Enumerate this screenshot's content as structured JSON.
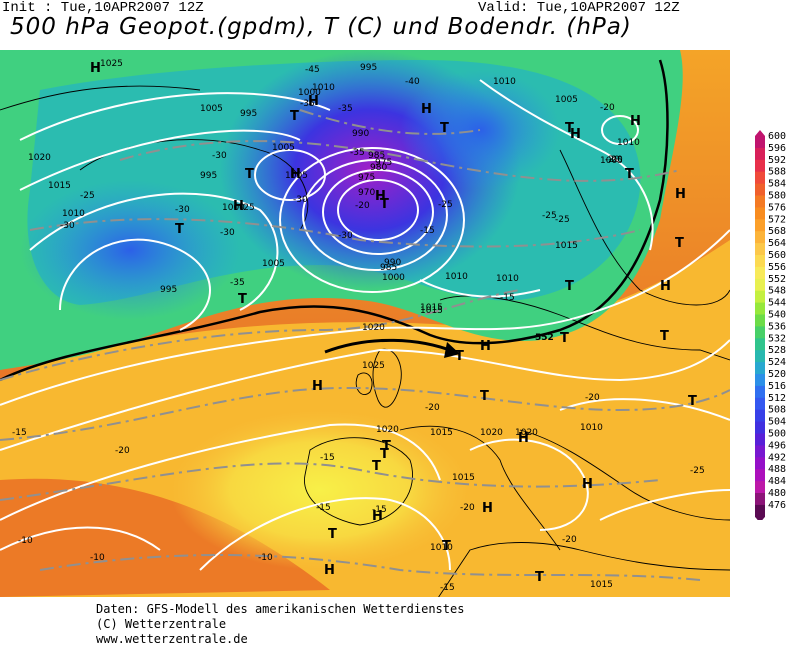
{
  "header": {
    "init": "Init : Tue,10APR2007 12Z",
    "valid": "Valid: Tue,10APR2007 12Z",
    "title": "500 hPa Geopot.(gpdm), T (C) und Bodendr. (hPa)"
  },
  "footer": {
    "line1": "Daten: GFS-Modell des amerikanischen Wetterdienstes",
    "line2": "(C) Wetterzentrale",
    "line3": "www.wetterzentrale.de"
  },
  "legend": {
    "levels": [
      "600",
      "596",
      "592",
      "588",
      "584",
      "580",
      "576",
      "572",
      "568",
      "564",
      "560",
      "556",
      "552",
      "548",
      "544",
      "540",
      "536",
      "532",
      "528",
      "524",
      "520",
      "516",
      "512",
      "508",
      "504",
      "500",
      "496",
      "492",
      "488",
      "484",
      "480",
      "476"
    ],
    "colors": [
      "#c0146e",
      "#d8205a",
      "#e8304a",
      "#f04a3a",
      "#f0602c",
      "#f47a24",
      "#f88c20",
      "#fca02a",
      "#fcb43a",
      "#fcc84a",
      "#fcda52",
      "#f8ea5a",
      "#e8f050",
      "#c4f040",
      "#96e83c",
      "#6cdc48",
      "#48d068",
      "#30c48c",
      "#28b8b0",
      "#28a8d0",
      "#2c90e8",
      "#3070f0",
      "#3458f0",
      "#3840e8",
      "#4030e0",
      "#5820d8",
      "#7818d0",
      "#9410c8",
      "#ac10bc",
      "#bc18a8",
      "#8c1478",
      "#5a0a52"
    ]
  },
  "map": {
    "pressure_labels": [
      "1025",
      "1005",
      "1020",
      "1015",
      "1010",
      "1005",
      "995",
      "1000",
      "995",
      "1005",
      "1000",
      "1010",
      "995",
      "975",
      "990",
      "985",
      "980",
      "975",
      "970",
      "990",
      "985",
      "1000",
      "1005",
      "1010",
      "1010",
      "1005",
      "1010",
      "1005",
      "1010",
      "1015",
      "1010",
      "1015",
      "1020",
      "1020",
      "1025",
      "1015",
      "1020",
      "1020",
      "1015",
      "1010",
      "1015",
      "1015",
      "995"
    ],
    "temperature_labels": [
      "-45",
      "-40",
      "-35",
      "-35",
      "-35",
      "-30",
      "-25",
      "-30",
      "-25",
      "-30",
      "-25",
      "-30",
      "-35",
      "-30",
      "-30",
      "-25",
      "-20",
      "-25",
      "-20",
      "-20",
      "-15",
      "-20",
      "-15",
      "-20",
      "-25",
      "-20",
      "-15",
      "-15",
      "-20",
      "-10",
      "-10",
      "-15",
      "-20",
      "-15",
      "-20",
      "-15",
      "-10"
    ],
    "high_labels": [
      "H",
      "H",
      "H",
      "H",
      "H",
      "H",
      "H",
      "H",
      "H",
      "H",
      "H",
      "H",
      "H",
      "H",
      "H",
      "H",
      "H"
    ],
    "low_labels": [
      "T",
      "T",
      "T",
      "T",
      "T",
      "T",
      "T",
      "T",
      "T",
      "T",
      "T",
      "T",
      "T",
      "T",
      "T",
      "T",
      "T",
      "T",
      "T",
      "T",
      "T"
    ],
    "contour_552_label": "552"
  }
}
